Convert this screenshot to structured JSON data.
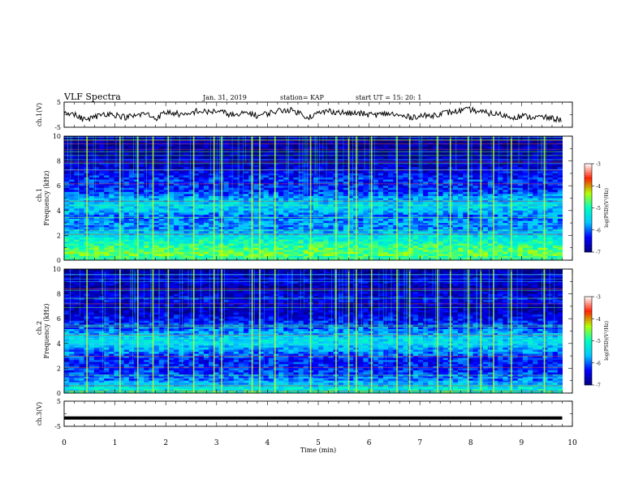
{
  "header": {
    "title": "VLF Spectra",
    "date": "Jan. 31, 2019",
    "station": "station= KAP",
    "start": "start  UT =   15: 20: 1"
  },
  "chart_data": [
    {
      "type": "line",
      "name": "ch1-waveform",
      "ylabel": "ch.1(V)",
      "ylim": [
        -5,
        5
      ],
      "yticks": [
        "5",
        "-5"
      ],
      "xlim": [
        0,
        10
      ],
      "x": [
        0,
        0.2,
        0.4,
        0.6,
        0.8,
        1.0,
        1.2,
        1.4,
        1.6,
        1.8,
        2.0,
        2.2,
        2.4,
        2.6,
        2.8,
        3.0,
        3.2,
        3.4,
        3.6,
        3.8,
        4.0,
        4.2,
        4.4,
        4.6,
        4.8,
        5.0,
        5.2,
        5.4,
        5.6,
        5.8,
        6.0,
        6.2,
        6.4,
        6.6,
        6.8,
        7.0,
        7.2,
        7.4,
        7.6,
        7.8,
        8.0,
        8.2,
        8.4,
        8.6,
        8.8,
        9.0,
        9.2,
        9.4,
        9.6,
        9.8
      ],
      "y": [
        1.5,
        0.0,
        -2.0,
        -1.0,
        0.5,
        0.0,
        -1.0,
        -0.5,
        0.5,
        -1.5,
        1.0,
        0.5,
        -0.5,
        1.5,
        1.0,
        1.5,
        0.5,
        -0.5,
        1.0,
        -0.5,
        0.5,
        1.5,
        2.0,
        1.0,
        -1.0,
        0.5,
        1.5,
        1.0,
        0.5,
        0.5,
        0.0,
        0.0,
        0.5,
        -0.5,
        -1.0,
        -0.5,
        -0.5,
        0.5,
        1.0,
        1.5,
        2.0,
        1.0,
        0.5,
        0.0,
        -1.0,
        -0.5,
        -1.0,
        -1.0,
        -1.5,
        -2.0
      ]
    },
    {
      "type": "heatmap",
      "name": "ch1-spectrogram",
      "ylabel_top": "ch.1",
      "ylabel": "Frequency (kHz)",
      "xlim": [
        0,
        10
      ],
      "ylim": [
        0,
        10
      ],
      "yticks": [
        "0",
        "2",
        "4",
        "6",
        "8",
        "10"
      ],
      "colorbar": {
        "label": "log(PSD)(V²/Hz)",
        "range": [
          -7,
          -3
        ],
        "ticks": [
          "-3",
          "-4",
          "-5",
          "-6",
          "-7"
        ]
      },
      "band_profile_kHz": [
        {
          "f": 0.0,
          "v": -5.2
        },
        {
          "f": 0.5,
          "v": -4.6
        },
        {
          "f": 1.0,
          "v": -4.8
        },
        {
          "f": 1.5,
          "v": -5.1
        },
        {
          "f": 2.0,
          "v": -5.4
        },
        {
          "f": 2.5,
          "v": -5.9
        },
        {
          "f": 3.0,
          "v": -5.8
        },
        {
          "f": 3.5,
          "v": -6.0
        },
        {
          "f": 4.0,
          "v": -5.6
        },
        {
          "f": 4.5,
          "v": -5.5
        },
        {
          "f": 5.0,
          "v": -5.7
        },
        {
          "f": 5.5,
          "v": -6.2
        },
        {
          "f": 6.0,
          "v": -6.3
        },
        {
          "f": 6.5,
          "v": -6.2
        },
        {
          "f": 7.0,
          "v": -6.4
        },
        {
          "f": 7.5,
          "v": -6.6
        },
        {
          "f": 8.0,
          "v": -6.7
        },
        {
          "f": 8.5,
          "v": -6.8
        },
        {
          "f": 9.0,
          "v": -6.8
        },
        {
          "f": 9.5,
          "v": -6.8
        },
        {
          "f": 10.0,
          "v": -6.9
        }
      ],
      "sferic_times_min": [
        0.45,
        1.1,
        1.45,
        1.75,
        2.05,
        2.55,
        2.95,
        3.1,
        3.7,
        3.85,
        4.15,
        4.85,
        5.35,
        5.6,
        5.75,
        6.05,
        6.55,
        6.8,
        7.35,
        7.6,
        7.95,
        8.2,
        8.45,
        8.8,
        9.45
      ]
    },
    {
      "type": "heatmap",
      "name": "ch2-spectrogram",
      "ylabel_top": "ch.2",
      "ylabel": "Frequency (kHz)",
      "xlim": [
        0,
        10
      ],
      "ylim": [
        0,
        10
      ],
      "yticks": [
        "0",
        "2",
        "4",
        "6",
        "8",
        "10"
      ],
      "colorbar": {
        "label": "log(PSD)(V²/Hz)",
        "range": [
          -7,
          -3
        ],
        "ticks": [
          "-3",
          "-4",
          "-5",
          "-6",
          "-7"
        ]
      },
      "band_profile_kHz": [
        {
          "f": 0.0,
          "v": -5.0
        },
        {
          "f": 0.5,
          "v": -5.4
        },
        {
          "f": 1.0,
          "v": -5.9
        },
        {
          "f": 1.5,
          "v": -6.1
        },
        {
          "f": 2.0,
          "v": -6.2
        },
        {
          "f": 2.5,
          "v": -6.3
        },
        {
          "f": 3.0,
          "v": -6.1
        },
        {
          "f": 3.5,
          "v": -5.8
        },
        {
          "f": 4.0,
          "v": -5.4
        },
        {
          "f": 4.5,
          "v": -5.5
        },
        {
          "f": 5.0,
          "v": -5.9
        },
        {
          "f": 5.5,
          "v": -6.2
        },
        {
          "f": 6.0,
          "v": -6.4
        },
        {
          "f": 6.5,
          "v": -6.6
        },
        {
          "f": 7.0,
          "v": -6.7
        },
        {
          "f": 7.5,
          "v": -6.4
        },
        {
          "f": 8.0,
          "v": -6.6
        },
        {
          "f": 8.5,
          "v": -6.8
        },
        {
          "f": 9.0,
          "v": -6.5
        },
        {
          "f": 9.5,
          "v": -6.7
        },
        {
          "f": 10.0,
          "v": -6.9
        }
      ],
      "sferic_times_min": [
        0.45,
        1.1,
        1.45,
        1.75,
        2.05,
        2.55,
        2.95,
        3.1,
        3.7,
        3.85,
        4.15,
        4.85,
        5.35,
        5.6,
        5.75,
        6.05,
        6.55,
        6.8,
        7.35,
        7.6,
        7.95,
        8.2,
        8.45,
        8.8,
        9.45
      ]
    },
    {
      "type": "line",
      "name": "ch3-waveform",
      "ylabel": "ch.3(V)",
      "ylim": [
        -5,
        5
      ],
      "yticks": [
        "5",
        "-5"
      ],
      "xlim": [
        0,
        10
      ],
      "x": [
        0,
        9.8
      ],
      "y": [
        -1.7,
        -1.7
      ]
    }
  ],
  "xaxis": {
    "label": "Time (min)",
    "ticks": [
      "0",
      "1",
      "2",
      "3",
      "4",
      "5",
      "6",
      "7",
      "8",
      "9",
      "10"
    ]
  },
  "colors": {
    "scale": [
      "#000080",
      "#0000ff",
      "#00c8ff",
      "#00ffc0",
      "#b4ff00",
      "#ff2000",
      "#ffffff"
    ]
  }
}
